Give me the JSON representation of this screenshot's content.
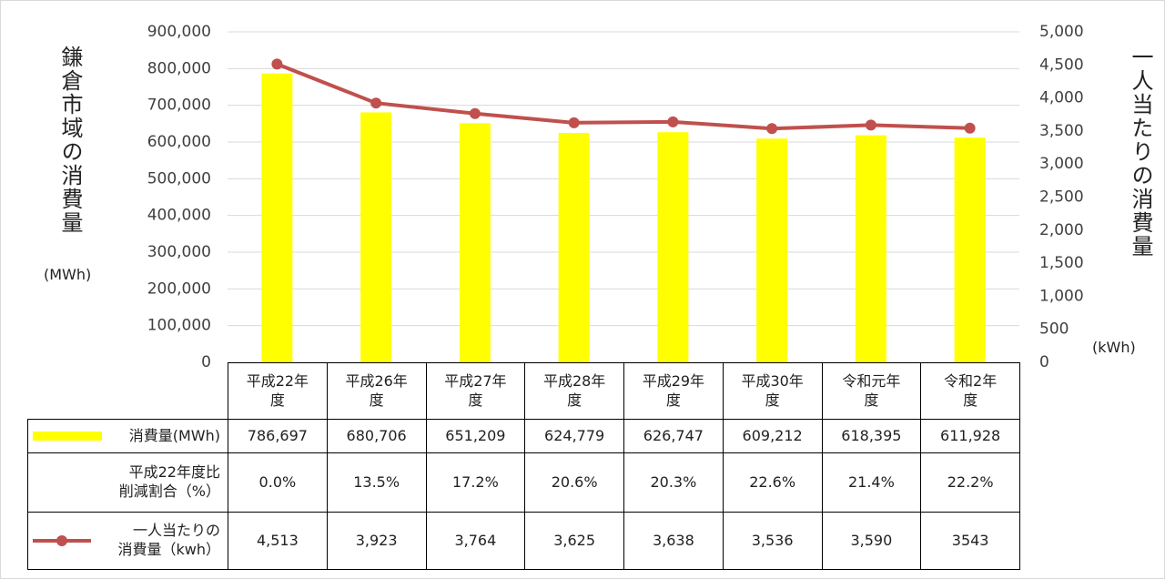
{
  "chart_data": {
    "type": "bar-line-table",
    "categories": [
      "平成22年\n度",
      "平成26年\n度",
      "平成27年\n度",
      "平成28年\n度",
      "平成29年\n度",
      "平成30年\n度",
      "令和元年\n度",
      "令和2年\n度"
    ],
    "y_label": "鎌倉市域の消費量",
    "y_unit": "(MWh)",
    "y2_label": "一人当たりの消費量",
    "y2_unit": "(kWh)",
    "ylim": [
      0,
      900000
    ],
    "yticks": [
      0,
      {
        "value": 100000,
        "label": "100,000"
      },
      {
        "value": 200000,
        "label": "200,000"
      },
      {
        "value": 300000,
        "label": "300,000"
      },
      {
        "value": 400000,
        "label": "400,000"
      },
      {
        "value": 500000,
        "label": "500,000"
      },
      {
        "value": 600000,
        "label": "600,000"
      },
      {
        "value": 700000,
        "label": "700,000"
      },
      {
        "value": 800000,
        "label": "800,000"
      },
      {
        "value": 900000,
        "label": "900,000"
      }
    ],
    "y2lim": [
      0,
      5000
    ],
    "y2ticks": [
      0,
      500,
      {
        "value": 1000,
        "label": "1,000"
      },
      {
        "value": 1500,
        "label": "1,500"
      },
      {
        "value": 2000,
        "label": "2,000"
      },
      {
        "value": 2500,
        "label": "2,500"
      },
      {
        "value": 3000,
        "label": "3,000"
      },
      {
        "value": 3500,
        "label": "3,500"
      },
      {
        "value": 4000,
        "label": "4,000"
      },
      {
        "value": 4500,
        "label": "4,500"
      },
      {
        "value": 5000,
        "label": "5,000"
      }
    ],
    "grid": true,
    "series": [
      {
        "name": "消費量(MWh)",
        "type": "bar",
        "color": "#ffff00",
        "values": [
          786697,
          680706,
          651209,
          624779,
          626747,
          609212,
          618395,
          611928
        ],
        "value_labels": [
          "786,697",
          "680,706",
          "651,209",
          "624,779",
          "626,747",
          "609,212",
          "618,395",
          "611,928"
        ]
      },
      {
        "name": "平成22年度比\n削減割合（%）",
        "type": "table",
        "values": [
          0.0,
          13.5,
          17.2,
          20.6,
          20.3,
          22.6,
          21.4,
          22.2
        ],
        "value_labels": [
          "0.0%",
          "13.5%",
          "17.2%",
          "20.6%",
          "20.3%",
          "22.6%",
          "21.4%",
          "22.2%"
        ]
      },
      {
        "name": "一人当たりの\n消費量（kwh）",
        "type": "line",
        "axis": "y2",
        "color": "#c0504d",
        "values": [
          4513,
          3923,
          3764,
          3625,
          3638,
          3536,
          3590,
          3543
        ],
        "value_labels": [
          "4,513",
          "3,923",
          "3,764",
          "3,625",
          "3,638",
          "3,536",
          "3,590",
          "3543"
        ]
      }
    ]
  }
}
